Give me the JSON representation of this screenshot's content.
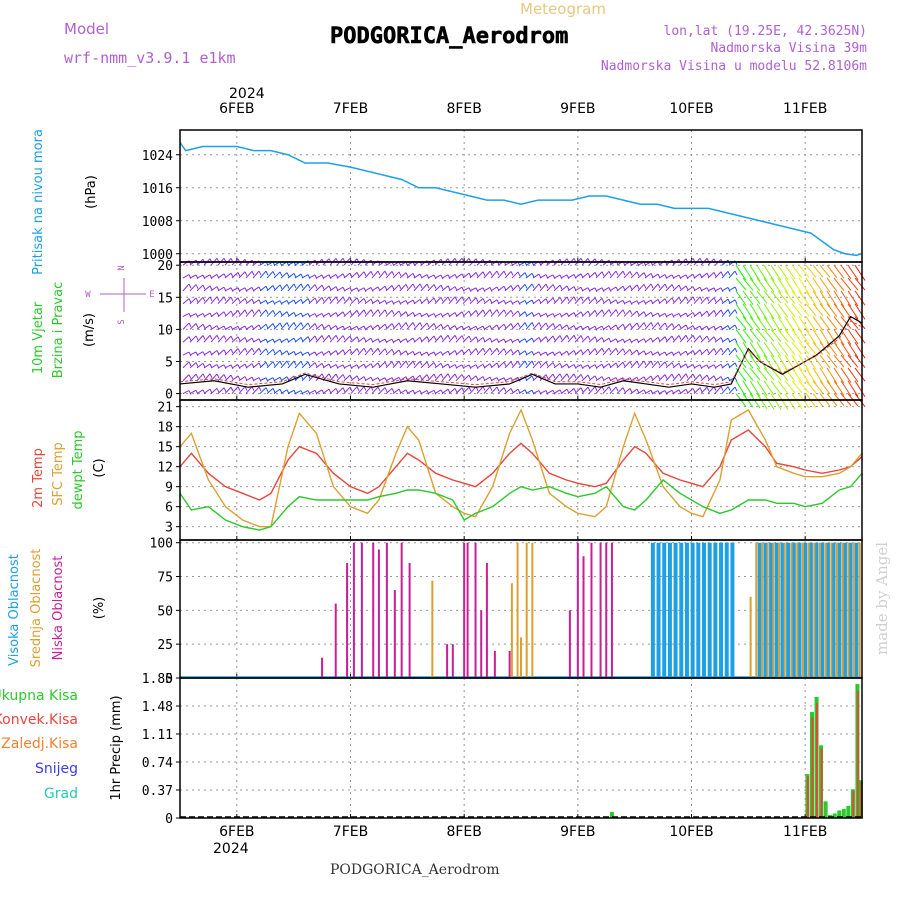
{
  "header": {
    "model_label": "Model",
    "model_name": "wrf-nmm_v3.9.1 e1km",
    "meteogram_label": "Meteogram",
    "station": "PODGORICA_Aerodrom",
    "lonlat": "lon,lat (19.25E, 42.3625N)",
    "altitude": "Nadmorska Visina 39m",
    "model_altitude": "Nadmorska Visina u modelu 52.8106m"
  },
  "footer": {
    "station": "PODGORICA_Aerodrom",
    "watermark": "made by Angel"
  },
  "time_axis": {
    "year": "2024",
    "days": [
      "6FEB",
      "7FEB",
      "8FEB",
      "9FEB",
      "10FEB",
      "11FEB"
    ],
    "x_range_days": [
      5.5,
      11.5
    ]
  },
  "colors": {
    "pressure": "#1ea0e6",
    "wind_barb_low": "#8a2be2",
    "wind_barb_mid": "#1e50ff",
    "temp2m": "#e6463c",
    "sfc_temp": "#dca032",
    "dewpt": "#2cc82c",
    "high_cloud": "#1ea0e6",
    "mid_cloud": "#dca032",
    "low_cloud": "#c81e96",
    "total_precip": "#2cc82c",
    "conv_precip": "#e6463c",
    "frozen": "#f08232",
    "snow": "#3c3ce6",
    "hail": "#28c8b4"
  },
  "chart_data": [
    {
      "type": "line",
      "panel": "pressure",
      "ylabel_lines": [
        "Pritisak na nivou mora",
        "(hPa)"
      ],
      "ylim": [
        998,
        1030
      ],
      "yticks": [
        "1024",
        "1016",
        "1008",
        "1000"
      ],
      "grid": true,
      "x": [
        5.5,
        5.55,
        5.7,
        5.85,
        6.0,
        6.15,
        6.3,
        6.45,
        6.6,
        6.7,
        6.8,
        7.0,
        7.15,
        7.3,
        7.45,
        7.6,
        7.75,
        7.9,
        8.05,
        8.2,
        8.35,
        8.5,
        8.65,
        8.8,
        8.95,
        9.1,
        9.25,
        9.4,
        9.55,
        9.7,
        9.85,
        10.0,
        10.15,
        10.3,
        10.45,
        10.6,
        10.75,
        10.9,
        11.05,
        11.15,
        11.25,
        11.35,
        11.45,
        11.5
      ],
      "series": [
        {
          "values": [
            1027,
            1025,
            1026,
            1026,
            1026,
            1025,
            1025,
            1024,
            1022,
            1022,
            1022,
            1021,
            1020,
            1019,
            1018,
            1016,
            1016,
            1015,
            1014,
            1013,
            1013,
            1012,
            1013,
            1013,
            1013,
            1014,
            1014,
            1013,
            1012,
            1012,
            1011,
            1011,
            1011,
            1010,
            1009,
            1008,
            1007,
            1006,
            1005,
            1003,
            1001,
            1000,
            999.6,
            1000
          ]
        }
      ]
    },
    {
      "type": "line",
      "panel": "wind",
      "ylabel_lines": [
        "10m Vjetar",
        "Brzina i Pravac",
        "(m/s)"
      ],
      "direction_legend": [
        "N",
        "E",
        "W",
        "S"
      ],
      "ylim": [
        -1,
        20.5
      ],
      "yticks": [
        "20",
        "15",
        "10",
        "5",
        "0"
      ],
      "grid": true,
      "x": [
        5.5,
        5.8,
        6.1,
        6.4,
        6.6,
        6.9,
        7.2,
        7.5,
        7.8,
        8.1,
        8.4,
        8.6,
        8.8,
        9.0,
        9.2,
        9.4,
        9.6,
        9.8,
        10.0,
        10.2,
        10.35,
        10.5,
        10.6,
        10.8,
        10.9,
        11.0,
        11.1,
        11.2,
        11.3,
        11.4,
        11.5
      ],
      "series": [
        {
          "values": [
            1.5,
            2.0,
            1.0,
            1.5,
            3.0,
            1.5,
            1.0,
            2.0,
            1.5,
            1.0,
            1.5,
            3.0,
            1.5,
            1.5,
            1.0,
            2.0,
            1.5,
            1.0,
            1.5,
            1.0,
            1.5,
            7.0,
            5.0,
            3.0,
            4.0,
            5.0,
            6.0,
            7.5,
            9.0,
            12.0,
            11.0
          ]
        }
      ]
    },
    {
      "type": "line",
      "panel": "temperature",
      "ylabel_lines": [
        "2m Temp",
        "SFC Temp",
        "dewpt Temp",
        "(C)"
      ],
      "ylim": [
        1,
        22
      ],
      "yticks": [
        "21",
        "18",
        "15",
        "12",
        "9",
        "6",
        "3"
      ],
      "grid": true,
      "x": [
        5.5,
        5.6,
        5.75,
        5.9,
        6.05,
        6.2,
        6.3,
        6.45,
        6.55,
        6.7,
        6.85,
        7.0,
        7.15,
        7.25,
        7.4,
        7.5,
        7.6,
        7.75,
        7.9,
        8.0,
        8.1,
        8.25,
        8.4,
        8.5,
        8.6,
        8.75,
        8.9,
        9.0,
        9.15,
        9.25,
        9.4,
        9.5,
        9.6,
        9.75,
        9.9,
        10.0,
        10.1,
        10.25,
        10.35,
        10.5,
        10.65,
        10.75,
        10.9,
        11.0,
        11.15,
        11.3,
        11.4,
        11.5
      ],
      "series": [
        {
          "name": "2m Temp",
          "values": [
            12,
            14,
            11,
            9,
            8,
            7,
            8,
            13,
            15,
            14,
            11,
            9,
            8,
            9,
            12,
            14,
            13,
            11,
            10,
            9.5,
            9,
            11,
            14,
            15.5,
            14,
            11,
            10,
            9.5,
            9,
            9.5,
            13,
            15,
            14,
            11,
            10,
            9.5,
            9,
            12,
            16,
            17.5,
            15,
            12.5,
            12,
            11.5,
            11,
            11.5,
            12,
            13.5
          ]
        },
        {
          "name": "SFC Temp",
          "values": [
            15,
            17,
            10,
            6,
            4,
            3,
            3,
            15,
            20,
            17,
            9,
            6,
            5,
            7,
            14,
            18,
            16,
            8,
            6,
            5,
            4.5,
            9,
            17,
            20.5,
            16,
            8,
            6,
            5,
            4.5,
            6,
            15,
            20,
            16,
            9,
            6,
            5,
            4.5,
            10,
            19,
            20.5,
            16,
            12,
            11,
            10.5,
            10.5,
            11,
            12,
            14
          ]
        },
        {
          "name": "dewpt Temp",
          "values": [
            8,
            5.5,
            6,
            4,
            3,
            2.5,
            3,
            6,
            7.5,
            7,
            7,
            7,
            7,
            7.5,
            8,
            8.5,
            8.5,
            8,
            7,
            4,
            5,
            6,
            8,
            9,
            8.5,
            9,
            8,
            7.5,
            8,
            9,
            6,
            5.5,
            7,
            10,
            8,
            7,
            6,
            5,
            5.5,
            7,
            7,
            6.5,
            6.5,
            6,
            6.5,
            8.5,
            9,
            11
          ]
        }
      ]
    },
    {
      "type": "bar",
      "panel": "cloud",
      "ylabel_lines": [
        "Visoka Oblacnost",
        "Srednja Oblacnost",
        "Niska Oblacnost",
        "(%)"
      ],
      "ylim": [
        0,
        102
      ],
      "yticks": [
        "100",
        "75",
        "50",
        "25",
        "0"
      ],
      "grid": true,
      "series": [
        {
          "name": "Visoka Oblacnost",
          "x": [
            9.66,
            9.71,
            9.76,
            9.81,
            9.86,
            9.91,
            9.96,
            10.01,
            10.06,
            10.11,
            10.16,
            10.21,
            10.26,
            10.31,
            10.36,
            10.6,
            10.65,
            10.7,
            10.75,
            10.8,
            10.85,
            10.9,
            10.95,
            11.0,
            11.05,
            11.1,
            11.15,
            11.2,
            11.25,
            11.3,
            11.35,
            11.4,
            11.45
          ],
          "values": [
            100,
            100,
            100,
            100,
            100,
            100,
            100,
            100,
            100,
            100,
            100,
            100,
            100,
            100,
            100,
            100,
            100,
            100,
            100,
            100,
            100,
            100,
            100,
            100,
            100,
            100,
            100,
            100,
            100,
            100,
            100,
            100,
            100
          ]
        },
        {
          "name": "Srednja Oblacnost",
          "x": [
            7.72,
            8.42,
            8.47,
            8.5,
            8.55,
            8.6,
            10.52,
            10.57,
            10.62,
            10.67,
            10.72,
            10.77,
            10.82,
            10.88,
            10.93,
            10.98,
            11.03,
            11.08,
            11.13,
            11.18,
            11.23,
            11.28,
            11.33,
            11.38,
            11.43,
            11.48
          ],
          "values": [
            72,
            70,
            100,
            30,
            100,
            100,
            60,
            100,
            100,
            100,
            100,
            100,
            100,
            100,
            100,
            100,
            100,
            100,
            100,
            100,
            100,
            100,
            100,
            100,
            100,
            100
          ]
        },
        {
          "name": "Niska Oblacnost",
          "x": [
            6.75,
            6.87,
            6.97,
            7.03,
            7.1,
            7.2,
            7.25,
            7.32,
            7.39,
            7.45,
            7.52,
            7.85,
            7.9,
            8.0,
            8.03,
            8.1,
            8.15,
            8.2,
            8.27,
            8.4,
            8.93,
            9.0,
            9.05,
            9.12,
            9.2,
            9.25,
            9.3
          ],
          "values": [
            15,
            55,
            85,
            100,
            100,
            100,
            95,
            100,
            65,
            100,
            85,
            25,
            25,
            100,
            100,
            100,
            50,
            85,
            20,
            20,
            50,
            100,
            90,
            100,
            100,
            100,
            100
          ]
        }
      ]
    },
    {
      "type": "bar",
      "panel": "precipitation",
      "ylabel_lines": [
        "1hr Precip (mm)"
      ],
      "legend": [
        "Ukupna Kisa",
        "Konvek.Kisa",
        "Zaledj.Kisa",
        "Snijeg",
        "Grad"
      ],
      "ylim": [
        0,
        1.85
      ],
      "yticks": [
        "1.85",
        "1.48",
        "1.11",
        "0.74",
        "0.37",
        "0"
      ],
      "grid": true,
      "series": [
        {
          "name": "Ukupna Kisa",
          "x": [
            9.3,
            11.02,
            11.06,
            11.1,
            11.14,
            11.18,
            11.22,
            11.26,
            11.3,
            11.34,
            11.38,
            11.42,
            11.46,
            11.49
          ],
          "values": [
            0.08,
            0.58,
            1.4,
            1.6,
            0.96,
            0.22,
            0.04,
            0.06,
            0.1,
            0.12,
            0.16,
            0.38,
            1.77,
            0.5
          ]
        }
      ]
    }
  ]
}
